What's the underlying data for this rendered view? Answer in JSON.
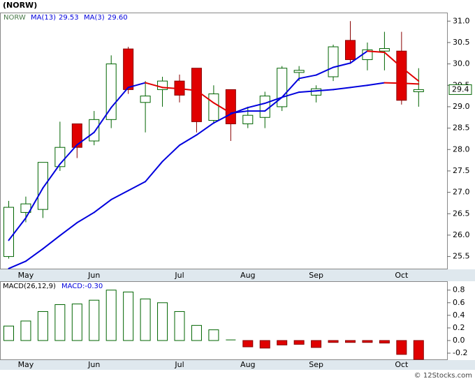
{
  "chart_data": [
    {
      "type": "candlestick",
      "title": "(NORW)",
      "ticker": "NORW",
      "categories": [
        null,
        "May",
        null,
        null,
        null,
        "Jun",
        null,
        null,
        null,
        null,
        "Jul",
        null,
        null,
        null,
        "Aug",
        null,
        null,
        null,
        "Sep",
        null,
        null,
        null,
        null,
        "Oct",
        null
      ],
      "open": [
        25.5,
        26.53,
        26.6,
        27.6,
        28.6,
        28.2,
        28.7,
        30.35,
        29.1,
        29.4,
        29.6,
        29.9,
        28.68,
        29.4,
        28.6,
        28.75,
        29.0,
        29.8,
        29.27,
        29.7,
        30.55,
        30.1,
        30.3,
        30.3,
        29.35
      ],
      "high": [
        26.8,
        26.9,
        27.7,
        28.65,
        28.6,
        28.9,
        30.2,
        30.4,
        29.6,
        29.7,
        29.75,
        29.9,
        29.5,
        29.4,
        29.0,
        29.35,
        29.95,
        29.95,
        29.5,
        30.45,
        31.0,
        30.5,
        30.75,
        30.75,
        29.9
      ],
      "low": [
        25.45,
        26.3,
        26.4,
        27.5,
        27.8,
        28.1,
        28.5,
        29.3,
        28.4,
        29.0,
        29.1,
        28.4,
        28.6,
        28.2,
        28.5,
        28.5,
        28.9,
        29.6,
        29.1,
        29.6,
        30.0,
        29.85,
        29.85,
        29.05,
        29.0
      ],
      "close": [
        26.65,
        26.73,
        27.7,
        28.05,
        28.05,
        28.7,
        30.0,
        29.4,
        29.25,
        29.6,
        29.27,
        28.65,
        29.3,
        28.6,
        28.8,
        29.25,
        29.9,
        29.85,
        29.42,
        30.4,
        30.1,
        30.33,
        30.36,
        29.15,
        29.4
      ],
      "up_color": "#006400",
      "down_color": "#e00000",
      "down_line_color": "#e00000",
      "last_price": 29.4,
      "moving_averages": [
        {
          "name": "MA(13)",
          "color": "#0000dd",
          "last": {
            "value": 29.53,
            "label": "29.53"
          },
          "values": [
            25.22,
            25.39,
            25.68,
            25.99,
            26.29,
            26.53,
            26.83,
            27.04,
            27.25,
            27.72,
            28.1,
            28.34,
            28.62,
            28.83,
            28.98,
            29.08,
            29.22,
            29.34,
            29.37,
            29.4,
            29.45,
            29.5,
            29.56,
            29.55,
            29.53
          ]
        },
        {
          "name": "MA(3)",
          "color": "#0000dd",
          "last": {
            "value": 29.6,
            "label": "29.60"
          },
          "values": [
            25.88,
            26.4,
            27.1,
            27.66,
            28.11,
            28.4,
            28.98,
            29.45,
            29.56,
            29.45,
            29.42,
            29.38,
            29.09,
            28.85,
            28.9,
            28.9,
            29.22,
            29.66,
            29.74,
            29.92,
            30.02,
            30.3,
            30.27,
            29.92,
            29.6
          ]
        }
      ],
      "ylim": [
        25.2,
        31.2
      ],
      "yticks": [
        25.5,
        {
          "value": 26,
          "label": "26.0"
        },
        26.5,
        {
          "value": 27,
          "label": "27.0"
        },
        27.5,
        {
          "value": 28,
          "label": "28.0"
        },
        28.5,
        {
          "value": 29,
          "label": "29.0"
        },
        29.5,
        {
          "value": 30,
          "label": "30.0"
        },
        30.5,
        {
          "value": 31,
          "label": "31.0"
        }
      ],
      "grid": false
    },
    {
      "type": "bar",
      "series_name": "MACD(26,12,9)",
      "last": {
        "value": -0.3,
        "label": "MACD:-0.30"
      },
      "categories": [
        null,
        "May",
        null,
        null,
        null,
        "Jun",
        null,
        null,
        null,
        null,
        "Jul",
        null,
        null,
        null,
        "Aug",
        null,
        null,
        null,
        "Sep",
        null,
        null,
        null,
        null,
        "Oct",
        null
      ],
      "values": [
        0.23,
        0.31,
        0.46,
        0.57,
        0.58,
        0.64,
        0.8,
        0.77,
        0.66,
        0.6,
        0.46,
        0.24,
        0.17,
        0.01,
        -0.1,
        -0.12,
        -0.07,
        -0.06,
        -0.11,
        -0.03,
        -0.03,
        -0.03,
        -0.04,
        -0.22,
        -0.3
      ],
      "up_color": "#006400",
      "down_color": "#e00000",
      "ylim": [
        -0.31,
        0.93
      ],
      "yticks": [
        0.8,
        0.6,
        0.4,
        0.2,
        {
          "value": 0,
          "label": "0.0"
        },
        -0.2
      ],
      "grid": false
    }
  ],
  "footer": "© 12Stocks.com"
}
